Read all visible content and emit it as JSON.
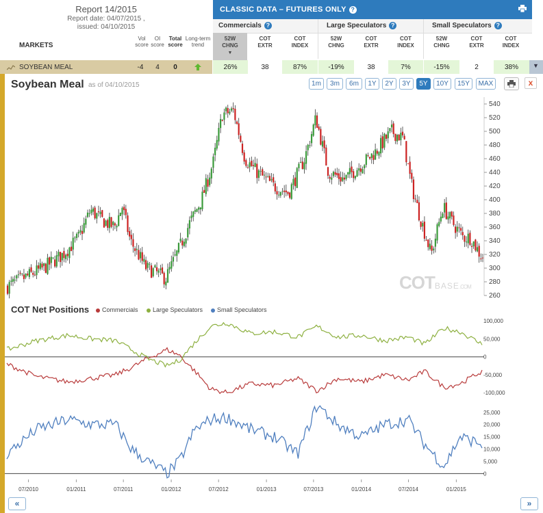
{
  "report": {
    "title": "Report 14/2015",
    "date": "Report date: 04/07/2015 ,",
    "issued": "issued: 04/10/2015"
  },
  "markets_label": "MARKETS",
  "score_headers": {
    "vol": [
      "Vol",
      "score"
    ],
    "oi": [
      "OI",
      "score"
    ],
    "total": [
      "Total",
      "score"
    ],
    "trend": [
      "Long-term",
      "trend"
    ]
  },
  "classic_title": "CLASSIC DATA – FUTURES ONLY",
  "groups": [
    "Commercials",
    "Large Speculators",
    "Small Speculators"
  ],
  "column_headers": [
    [
      "52W",
      "CHNG"
    ],
    [
      "COT",
      "EXTR"
    ],
    [
      "COT",
      "INDEX"
    ],
    [
      "52W",
      "CHNG"
    ],
    [
      "COT",
      "EXTR"
    ],
    [
      "COT",
      "INDEX"
    ],
    [
      "52W",
      "CHNG"
    ],
    [
      "COT",
      "EXTR"
    ],
    [
      "COT",
      "INDEX"
    ]
  ],
  "row": {
    "market": "SOYBEAN MEAL",
    "vol_score": "-4",
    "oi_score": "4",
    "total_score": "0",
    "values": [
      "26%",
      "38",
      "87%",
      "-19%",
      "38",
      "7%",
      "-15%",
      "2",
      "38%"
    ]
  },
  "chart_title": "Soybean Meal",
  "chart_subtitle": "as of 04/10/2015",
  "ranges": [
    "1m",
    "3m",
    "6m",
    "1Y",
    "2Y",
    "3Y",
    "5Y",
    "10Y",
    "15Y",
    "MAX"
  ],
  "active_range": "5Y",
  "close_label": "x",
  "watermark": {
    "cot": "COT",
    "base": "BASE",
    "com": ".COM"
  },
  "cot_title": "COT Net Positions",
  "legend": [
    "Commercials",
    "Large Speculators",
    "Small Speculators"
  ],
  "nav": {
    "prev": "«",
    "next": "»"
  },
  "colors": {
    "header_blue": "#2e7bbd",
    "up_candle": "#3a9a3a",
    "down_candle": "#cc2222",
    "commercials": "#b83a3a",
    "large_speculators": "#8db040",
    "small_speculators": "#4f7fbf",
    "accent": "#d4a82a"
  },
  "chart_data": [
    {
      "type": "candlestick",
      "title": "Soybean Meal",
      "y_ticks": [
        260,
        280,
        300,
        320,
        340,
        360,
        380,
        400,
        420,
        440,
        460,
        480,
        500,
        520,
        540
      ],
      "ylim": [
        260,
        550
      ],
      "x_ticks": [
        "07/2010",
        "01/2011",
        "07/2011",
        "01/2012",
        "07/2012",
        "01/2013",
        "07/2013",
        "01/2014",
        "07/2014",
        "01/2015"
      ],
      "x_tick_dates": [
        "2010-07-01",
        "2011-01-01",
        "2011-07-01",
        "2012-01-01",
        "2012-07-01",
        "2013-01-01",
        "2013-07-01",
        "2014-01-01",
        "2014-07-01",
        "2015-01-01"
      ],
      "xlim": [
        "2010-04-09",
        "2015-04-10"
      ],
      "grid": false,
      "price_path": [
        [
          "2010-04-09",
          272
        ],
        [
          "2010-06-15",
          285
        ],
        [
          "2010-09-01",
          300
        ],
        [
          "2010-11-15",
          320
        ],
        [
          "2011-01-15",
          345
        ],
        [
          "2011-03-01",
          385
        ],
        [
          "2011-04-15",
          370
        ],
        [
          "2011-06-01",
          360
        ],
        [
          "2011-07-01",
          390
        ],
        [
          "2011-08-01",
          340
        ],
        [
          "2011-10-01",
          300
        ],
        [
          "2011-11-01",
          295
        ],
        [
          "2011-12-15",
          285
        ],
        [
          "2012-02-01",
          325
        ],
        [
          "2012-03-15",
          365
        ],
        [
          "2012-05-01",
          400
        ],
        [
          "2012-06-15",
          455
        ],
        [
          "2012-07-20",
          525
        ],
        [
          "2012-09-01",
          530
        ],
        [
          "2012-10-15",
          460
        ],
        [
          "2012-12-01",
          440
        ],
        [
          "2013-02-01",
          420
        ],
        [
          "2013-04-01",
          410
        ],
        [
          "2013-06-01",
          460
        ],
        [
          "2013-07-15",
          520
        ],
        [
          "2013-09-01",
          440
        ],
        [
          "2013-11-01",
          430
        ],
        [
          "2014-01-01",
          450
        ],
        [
          "2014-03-01",
          470
        ],
        [
          "2014-05-01",
          500
        ],
        [
          "2014-06-15",
          490
        ],
        [
          "2014-07-15",
          425
        ],
        [
          "2014-08-15",
          380
        ],
        [
          "2014-10-01",
          320
        ],
        [
          "2014-11-15",
          390
        ],
        [
          "2014-12-15",
          370
        ],
        [
          "2015-02-01",
          345
        ],
        [
          "2015-03-01",
          345
        ],
        [
          "2015-04-10",
          318
        ]
      ]
    },
    {
      "type": "line",
      "title": "COT Net Positions",
      "series": [
        {
          "name": "Commercials",
          "values": [
            [
              "2010-04-09",
              -20000
            ],
            [
              "2010-08-01",
              -55000
            ],
            [
              "2010-12-01",
              -70000
            ],
            [
              "2011-03-01",
              -60000
            ],
            [
              "2011-06-01",
              -50000
            ],
            [
              "2011-08-01",
              -30000
            ],
            [
              "2011-10-01",
              -5000
            ],
            [
              "2011-12-15",
              20000
            ],
            [
              "2012-02-01",
              5000
            ],
            [
              "2012-04-01",
              -40000
            ],
            [
              "2012-06-01",
              -90000
            ],
            [
              "2012-08-01",
              -100000
            ],
            [
              "2012-11-01",
              -75000
            ],
            [
              "2013-02-01",
              -80000
            ],
            [
              "2013-05-01",
              -60000
            ],
            [
              "2013-07-15",
              -95000
            ],
            [
              "2013-10-01",
              -60000
            ],
            [
              "2014-01-01",
              -70000
            ],
            [
              "2014-04-01",
              -50000
            ],
            [
              "2014-07-01",
              -65000
            ],
            [
              "2014-09-01",
              -40000
            ],
            [
              "2014-11-15",
              -85000
            ],
            [
              "2015-01-15",
              -75000
            ],
            [
              "2015-04-10",
              -40000
            ]
          ]
        },
        {
          "name": "Large Speculators",
          "values": [
            [
              "2010-04-09",
              20000
            ],
            [
              "2010-08-01",
              45000
            ],
            [
              "2010-12-01",
              60000
            ],
            [
              "2011-03-01",
              50000
            ],
            [
              "2011-06-01",
              45000
            ],
            [
              "2011-08-01",
              20000
            ],
            [
              "2011-10-01",
              -5000
            ],
            [
              "2011-12-15",
              -25000
            ],
            [
              "2012-02-01",
              -10000
            ],
            [
              "2012-04-01",
              40000
            ],
            [
              "2012-06-01",
              85000
            ],
            [
              "2012-08-01",
              95000
            ],
            [
              "2012-11-01",
              65000
            ],
            [
              "2013-02-01",
              70000
            ],
            [
              "2013-05-01",
              55000
            ],
            [
              "2013-07-15",
              85000
            ],
            [
              "2013-10-01",
              55000
            ],
            [
              "2014-01-01",
              60000
            ],
            [
              "2014-04-01",
              45000
            ],
            [
              "2014-07-01",
              55000
            ],
            [
              "2014-09-01",
              35000
            ],
            [
              "2014-11-15",
              80000
            ],
            [
              "2015-01-15",
              70000
            ],
            [
              "2015-04-10",
              35000
            ]
          ]
        },
        {
          "name": "Small Speculators",
          "values": [
            [
              "2010-04-09",
              8000
            ],
            [
              "2010-08-01",
              18000
            ],
            [
              "2010-12-01",
              22000
            ],
            [
              "2011-03-01",
              20000
            ],
            [
              "2011-06-01",
              20000
            ],
            [
              "2011-08-01",
              10000
            ],
            [
              "2011-10-01",
              5000
            ],
            [
              "2011-12-15",
              0
            ],
            [
              "2012-02-01",
              5000
            ],
            [
              "2012-04-01",
              18000
            ],
            [
              "2012-06-01",
              22000
            ],
            [
              "2012-08-01",
              23000
            ],
            [
              "2012-11-01",
              18000
            ],
            [
              "2013-02-01",
              15000
            ],
            [
              "2013-05-01",
              8000
            ],
            [
              "2013-07-15",
              28000
            ],
            [
              "2013-10-01",
              20000
            ],
            [
              "2014-01-01",
              15000
            ],
            [
              "2014-04-01",
              20000
            ],
            [
              "2014-07-01",
              22000
            ],
            [
              "2014-09-01",
              12000
            ],
            [
              "2014-11-15",
              3000
            ],
            [
              "2015-01-15",
              15000
            ],
            [
              "2015-04-10",
              12000
            ]
          ]
        }
      ],
      "y_ticks_top": [
        -100000,
        -50000,
        0,
        50000,
        100000
      ],
      "y_ticks_top_labels": [
        "-100,000",
        "-50,000",
        "0",
        "50,000",
        "100,000"
      ],
      "y_ticks_bottom": [
        0,
        5000,
        10000,
        15000,
        20000,
        25000
      ],
      "y_ticks_bottom_labels": [
        "0",
        "5,000",
        "10,000",
        "15,000",
        "20,000",
        "25,000"
      ],
      "ylim_top": [
        -115000,
        110000
      ],
      "ylim_bottom": [
        -1000,
        28000
      ],
      "legend_position": "top"
    }
  ]
}
